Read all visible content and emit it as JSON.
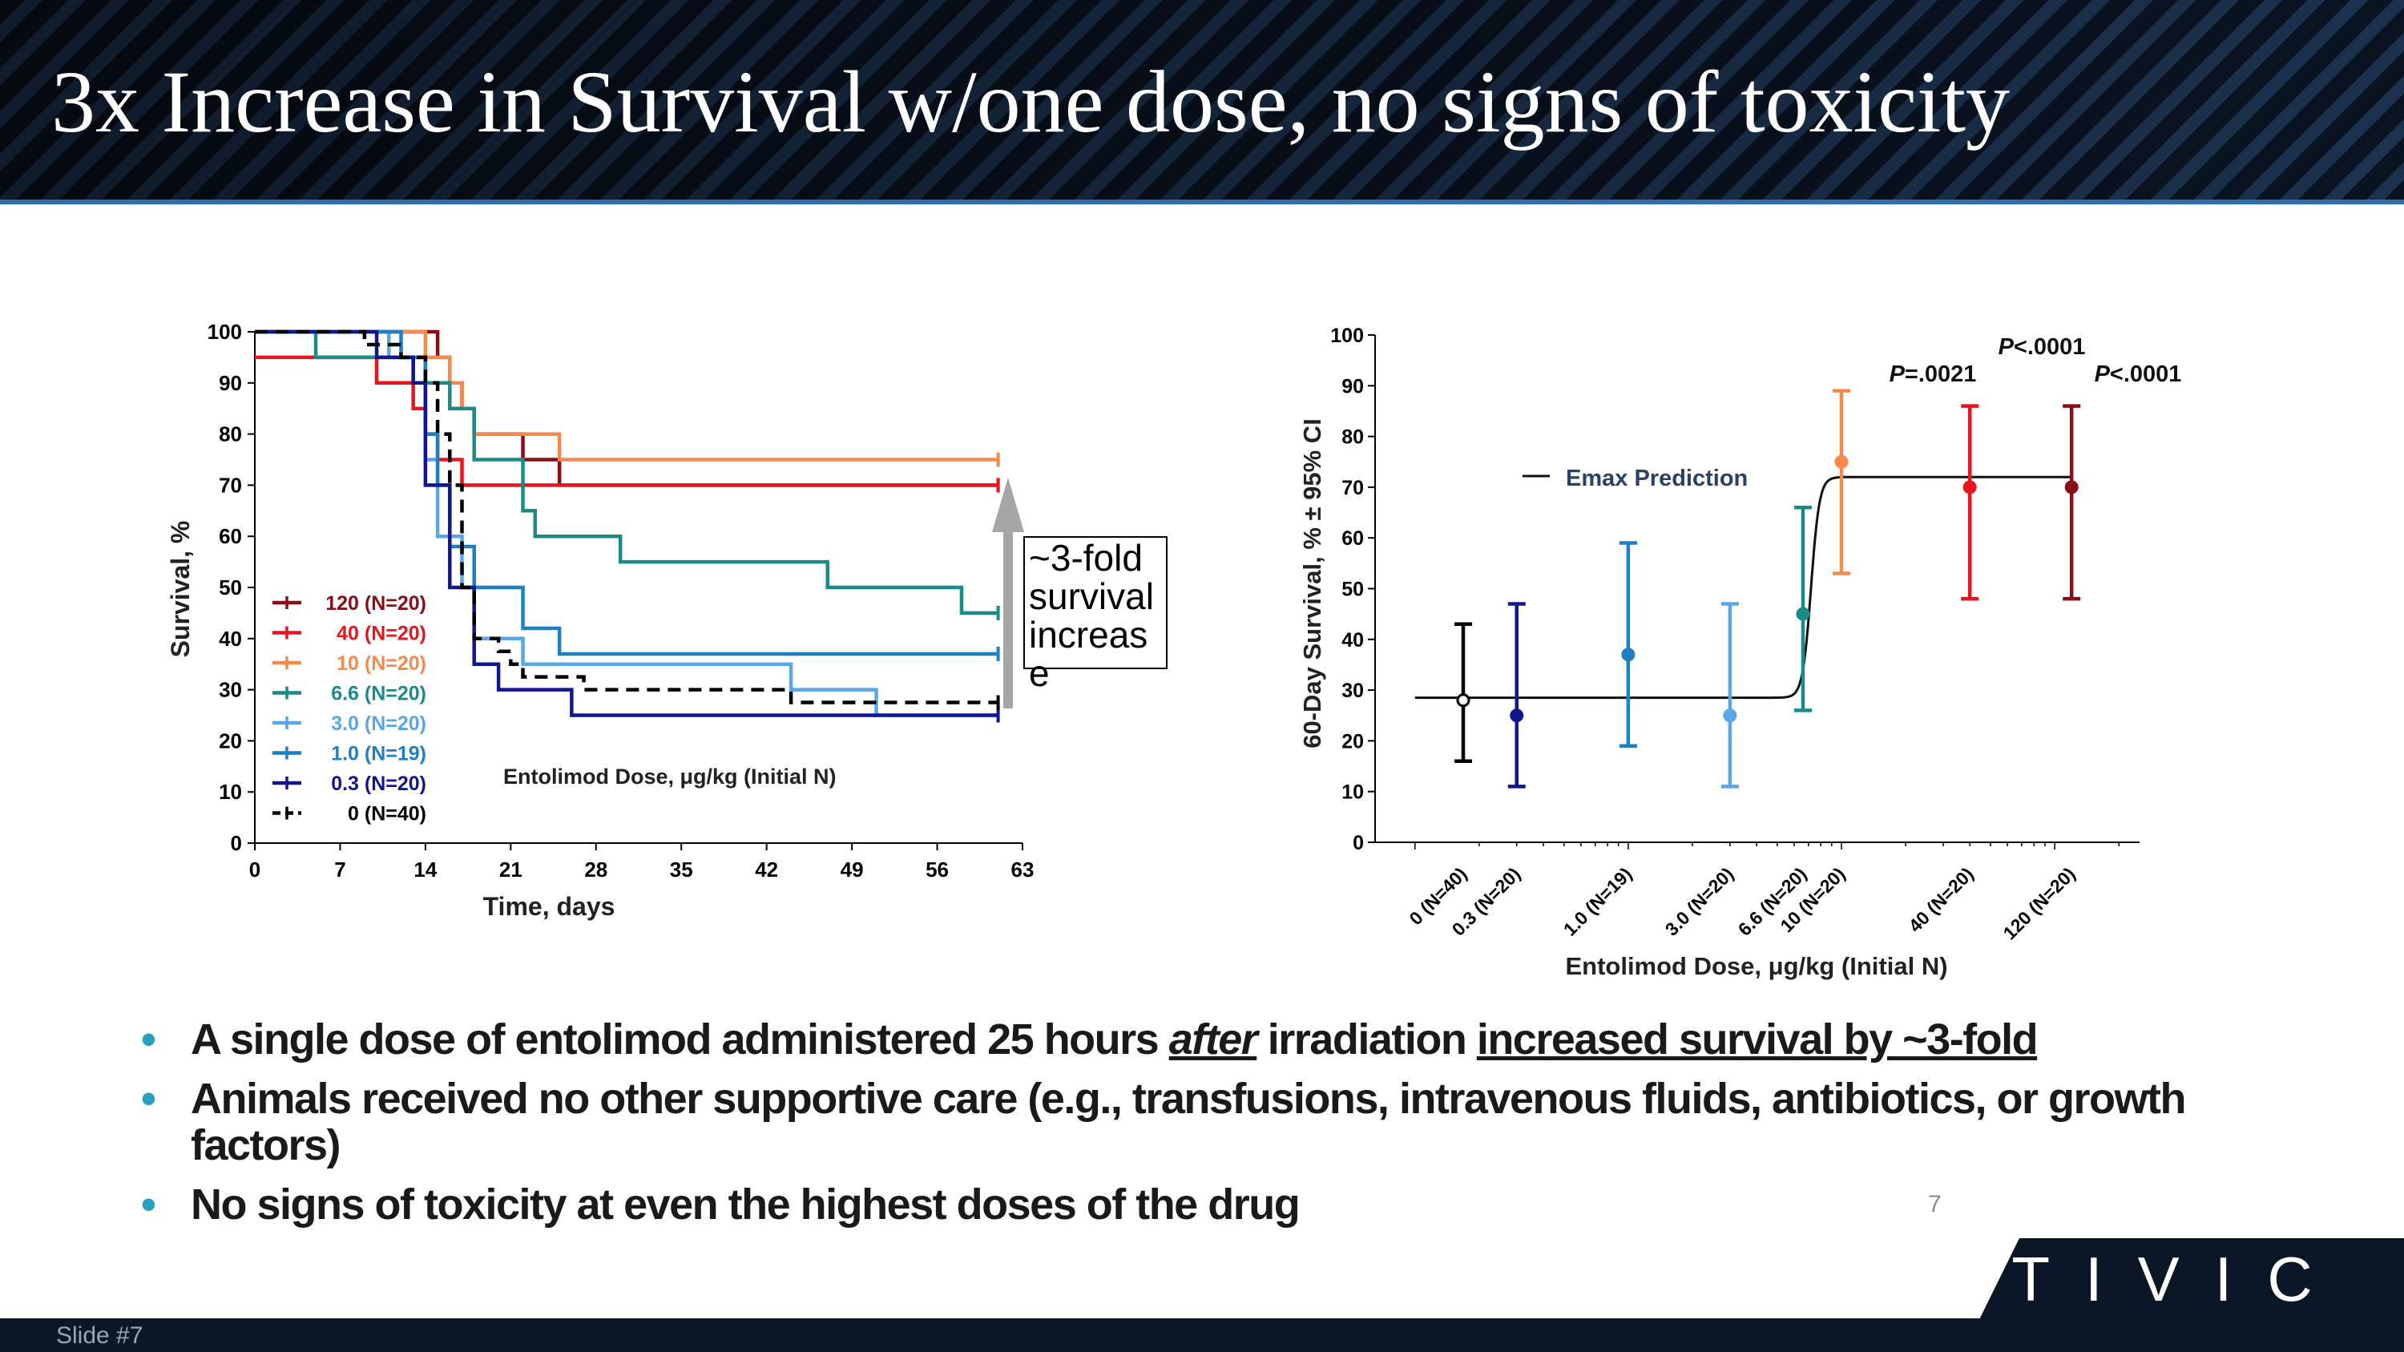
{
  "slide": {
    "title": "3x Increase in Survival w/one dose, no signs of toxicity",
    "page_number": "7",
    "footer_label": "Slide #7",
    "logo_text": "TIVIC"
  },
  "bullets": [
    {
      "parts": [
        "A single dose of entolimod administered 25 hours ",
        "after",
        " irradiation ",
        "increased survival by ~3-fold"
      ]
    },
    {
      "text": "Animals received no other supportive care (e.g., transfusions, intravenous fluids, antibiotics, or growth factors)"
    },
    {
      "text": "No signs of toxicity at even the highest doses of the drug"
    }
  ],
  "colors": {
    "d120": "#8b0d16",
    "d40": "#e8141e",
    "d10": "#f58a4b",
    "d6_6": "#1c8a86",
    "d3_0": "#5aa6e6",
    "d1_0": "#1f7fc1",
    "d0_3": "#12168e",
    "d0": "#000000",
    "bullet": "#2aa0c0",
    "header_rule": "#2f6fb0"
  },
  "chart_data": [
    {
      "type": "line",
      "subtype": "kaplan-meier",
      "xlabel": "Time, days",
      "ylabel": "Survival, %",
      "xlim": [
        0,
        63
      ],
      "ylim": [
        0,
        100
      ],
      "xticks": [
        0,
        7,
        14,
        21,
        28,
        35,
        42,
        49,
        56,
        63
      ],
      "yticks": [
        0,
        10,
        20,
        30,
        40,
        50,
        60,
        70,
        80,
        90,
        100
      ],
      "legend_title": "Entolimod Dose, μg/kg (Initial N)",
      "annotation": "~3-fold survival increase",
      "series": [
        {
          "name": "120 (N=20)",
          "color_key": "d120",
          "steps": [
            [
              0,
              100
            ],
            [
              15,
              95
            ],
            [
              16,
              90
            ],
            [
              17,
              85
            ],
            [
              18,
              80
            ],
            [
              21,
              80
            ],
            [
              22,
              75
            ],
            [
              24,
              75
            ],
            [
              25,
              70
            ],
            [
              61,
              70
            ]
          ]
        },
        {
          "name": "40 (N=20)",
          "color_key": "d40",
          "steps": [
            [
              0,
              95
            ],
            [
              10,
              90
            ],
            [
              13,
              85
            ],
            [
              14,
              80
            ],
            [
              15,
              75
            ],
            [
              17,
              70
            ],
            [
              61,
              70
            ]
          ]
        },
        {
          "name": "10 (N=20)",
          "color_key": "d10",
          "steps": [
            [
              0,
              100
            ],
            [
              14,
              95
            ],
            [
              16,
              90
            ],
            [
              17,
              85
            ],
            [
              18,
              80
            ],
            [
              24,
              80
            ],
            [
              25,
              75
            ],
            [
              61,
              75
            ]
          ]
        },
        {
          "name": "6.6 (N=20)",
          "color_key": "d6_6",
          "steps": [
            [
              0,
              100
            ],
            [
              5,
              95
            ],
            [
              14,
              90
            ],
            [
              16,
              85
            ],
            [
              18,
              75
            ],
            [
              21,
              75
            ],
            [
              22,
              65
            ],
            [
              23,
              60
            ],
            [
              30,
              55
            ],
            [
              47,
              50
            ],
            [
              58,
              45
            ],
            [
              61,
              45
            ]
          ]
        },
        {
          "name": "3.0 (N=20)",
          "color_key": "d3_0",
          "steps": [
            [
              0,
              100
            ],
            [
              11,
              95
            ],
            [
              13,
              90
            ],
            [
              14,
              75
            ],
            [
              15,
              60
            ],
            [
              17,
              50
            ],
            [
              18,
              40
            ],
            [
              21,
              40
            ],
            [
              22,
              35
            ],
            [
              44,
              30
            ],
            [
              51,
              25
            ],
            [
              61,
              25
            ]
          ]
        },
        {
          "name": "1.0 (N=19)",
          "color_key": "d1_0",
          "steps": [
            [
              0,
              100
            ],
            [
              12,
              95
            ],
            [
              14,
              80
            ],
            [
              15,
              70
            ],
            [
              16,
              58
            ],
            [
              18,
              50
            ],
            [
              22,
              42
            ],
            [
              25,
              37
            ],
            [
              61,
              37
            ]
          ]
        },
        {
          "name": "0.3 (N=20)",
          "color_key": "d0_3",
          "steps": [
            [
              0,
              100
            ],
            [
              10,
              95
            ],
            [
              13,
              90
            ],
            [
              14,
              70
            ],
            [
              16,
              50
            ],
            [
              18,
              35
            ],
            [
              20,
              30
            ],
            [
              26,
              25
            ],
            [
              61,
              25
            ]
          ]
        },
        {
          "name": "0 (N=40)",
          "color_key": "d0",
          "dashed": true,
          "steps": [
            [
              0,
              100
            ],
            [
              9,
              97.5
            ],
            [
              12,
              95
            ],
            [
              14,
              90
            ],
            [
              15,
              80
            ],
            [
              16,
              70
            ],
            [
              17,
              50
            ],
            [
              18,
              40
            ],
            [
              20,
              37.5
            ],
            [
              21,
              35
            ],
            [
              22,
              32.5
            ],
            [
              27,
              30
            ],
            [
              44,
              27.5
            ],
            [
              61,
              27.5
            ]
          ]
        }
      ]
    },
    {
      "type": "scatter",
      "subtype": "dose-response-errorbar",
      "xlabel": "Entolimod Dose, μg/kg (Initial N)",
      "ylabel": "60-Day Survival, % ± 95% CI",
      "ylim": [
        0,
        100
      ],
      "yticks": [
        0,
        10,
        20,
        30,
        40,
        50,
        60,
        70,
        80,
        90,
        100
      ],
      "xscale": "log",
      "fit_label": "Emax Prediction",
      "fit": {
        "bottom": 28.5,
        "top": 72,
        "ec50": 7.2,
        "hill": 22
      },
      "points": [
        {
          "label": "0 (N=40)",
          "dose": 0,
          "y": 28,
          "lo": 16,
          "hi": 43,
          "color_key": "d0",
          "hollow": true
        },
        {
          "label": "0.3 (N=20)",
          "dose": 0.3,
          "y": 25,
          "lo": 11,
          "hi": 47,
          "color_key": "d0_3"
        },
        {
          "label": "1.0 (N=19)",
          "dose": 1.0,
          "y": 37,
          "lo": 19,
          "hi": 59,
          "color_key": "d1_0"
        },
        {
          "label": "3.0 (N=20)",
          "dose": 3.0,
          "y": 25,
          "lo": 11,
          "hi": 47,
          "color_key": "d3_0"
        },
        {
          "label": "6.6 (N=20)",
          "dose": 6.6,
          "y": 45,
          "lo": 26,
          "hi": 66,
          "color_key": "d6_6"
        },
        {
          "label": "10 (N=20)",
          "dose": 10,
          "y": 75,
          "lo": 53,
          "hi": 89,
          "color_key": "d10"
        },
        {
          "label": "40 (N=20)",
          "dose": 40,
          "y": 70,
          "lo": 48,
          "hi": 86,
          "color_key": "d40"
        },
        {
          "label": "120 (N=20)",
          "dose": 120,
          "y": 70,
          "lo": 48,
          "hi": 86,
          "color_key": "d120"
        }
      ],
      "pvalues": [
        {
          "text": "P=.0021",
          "dose": 10
        },
        {
          "text": "P<.0001",
          "dose": 40
        },
        {
          "text": "P<.0001",
          "dose": 120
        }
      ]
    }
  ]
}
